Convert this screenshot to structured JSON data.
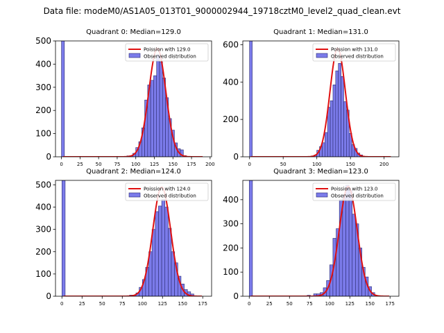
{
  "title": "Data file: modeM0/AS1A05_013T01_9000002944_19718cztM0_level2_quad_clean.evt",
  "colors": {
    "bar_fill": "#7b7bea",
    "bar_edge": "#2a2a6e",
    "curve": "#e01010"
  },
  "chart_data": [
    {
      "type": "bar",
      "title": "Quadrant 0: Median=129.0",
      "legend": {
        "placement": "top-right",
        "curve_label": "Poission with 129.0",
        "bars_label": "Observed distribution"
      },
      "xlim": [
        -8,
        202
      ],
      "ylim": [
        0,
        500
      ],
      "xticks": [
        0,
        25,
        50,
        75,
        100,
        125,
        150,
        175,
        200
      ],
      "yticks": [
        0,
        100,
        200,
        300,
        400,
        500
      ],
      "bin_width": 4,
      "zero_bin": 500,
      "bins": [
        [
          88,
          4
        ],
        [
          92,
          5
        ],
        [
          96,
          15
        ],
        [
          100,
          40
        ],
        [
          104,
          65
        ],
        [
          108,
          125
        ],
        [
          112,
          245
        ],
        [
          116,
          310
        ],
        [
          120,
          330
        ],
        [
          124,
          350
        ],
        [
          128,
          440
        ],
        [
          132,
          410
        ],
        [
          136,
          340
        ],
        [
          140,
          255
        ],
        [
          144,
          165
        ],
        [
          148,
          115
        ],
        [
          152,
          60
        ],
        [
          156,
          35
        ],
        [
          160,
          30
        ],
        [
          164,
          5
        ]
      ],
      "curve": {
        "mean": 129.0,
        "peak": 468,
        "sigma": 11.4
      }
    },
    {
      "type": "bar",
      "title": "Quadrant 1: Median=131.0",
      "legend": {
        "placement": "top-right",
        "curve_label": "Poission with 131.0",
        "bars_label": "Observed distribution"
      },
      "xlim": [
        -10,
        222
      ],
      "ylim": [
        0,
        620
      ],
      "xticks": [
        0,
        50,
        100,
        150,
        200
      ],
      "yticks": [
        0,
        200,
        400,
        600
      ],
      "bin_width": 4,
      "zero_bin": 620,
      "bins": [
        [
          92,
          5
        ],
        [
          96,
          10
        ],
        [
          100,
          35
        ],
        [
          104,
          55
        ],
        [
          108,
          75
        ],
        [
          112,
          130
        ],
        [
          116,
          265
        ],
        [
          120,
          300
        ],
        [
          124,
          385
        ],
        [
          128,
          460
        ],
        [
          132,
          500
        ],
        [
          136,
          430
        ],
        [
          140,
          295
        ],
        [
          144,
          250
        ],
        [
          148,
          125
        ],
        [
          152,
          65
        ],
        [
          156,
          45
        ],
        [
          160,
          20
        ],
        [
          164,
          10
        ]
      ],
      "curve": {
        "mean": 131.0,
        "peak": 580,
        "sigma": 11.4
      }
    },
    {
      "type": "bar",
      "title": "Quadrant 2: Median=124.0",
      "legend": {
        "placement": "top-right",
        "curve_label": "Poission with 124.0",
        "bars_label": "Observed distribution"
      },
      "xlim": [
        -8,
        186
      ],
      "ylim": [
        0,
        520
      ],
      "xticks": [
        0,
        25,
        50,
        75,
        100,
        125,
        150,
        175
      ],
      "yticks": [
        0,
        100,
        200,
        300,
        400,
        500
      ],
      "bin_width": 4,
      "zero_bin": 520,
      "bins": [
        [
          84,
          5
        ],
        [
          88,
          5
        ],
        [
          92,
          15
        ],
        [
          96,
          40
        ],
        [
          100,
          75
        ],
        [
          104,
          130
        ],
        [
          108,
          200
        ],
        [
          112,
          300
        ],
        [
          116,
          380
        ],
        [
          120,
          405
        ],
        [
          124,
          435
        ],
        [
          128,
          400
        ],
        [
          132,
          305
        ],
        [
          136,
          200
        ],
        [
          140,
          150
        ],
        [
          144,
          90
        ],
        [
          148,
          55
        ],
        [
          152,
          30
        ],
        [
          156,
          20
        ],
        [
          160,
          10
        ]
      ],
      "curve": {
        "mean": 124.0,
        "peak": 490,
        "sigma": 11.1
      }
    },
    {
      "type": "bar",
      "title": "Quadrant 3: Median=123.0",
      "legend": {
        "placement": "top-right",
        "curve_label": "Poission with 123.0",
        "bars_label": "Observed distribution"
      },
      "xlim": [
        -8,
        186
      ],
      "ylim": [
        0,
        480
      ],
      "xticks": [
        0,
        25,
        50,
        75,
        100,
        125,
        150,
        175
      ],
      "yticks": [
        0,
        100,
        200,
        300,
        400
      ],
      "bin_width": 4,
      "zero_bin": 480,
      "bins": [
        [
          72,
          4
        ],
        [
          80,
          10
        ],
        [
          84,
          10
        ],
        [
          88,
          15
        ],
        [
          92,
          35
        ],
        [
          96,
          65
        ],
        [
          100,
          130
        ],
        [
          104,
          240
        ],
        [
          108,
          280
        ],
        [
          112,
          400
        ],
        [
          116,
          420
        ],
        [
          120,
          460
        ],
        [
          124,
          440
        ],
        [
          128,
          340
        ],
        [
          132,
          300
        ],
        [
          136,
          200
        ],
        [
          140,
          120
        ],
        [
          144,
          80
        ],
        [
          148,
          40
        ],
        [
          152,
          15
        ]
      ],
      "curve": {
        "mean": 123.0,
        "peak": 455,
        "sigma": 11.1
      }
    }
  ]
}
